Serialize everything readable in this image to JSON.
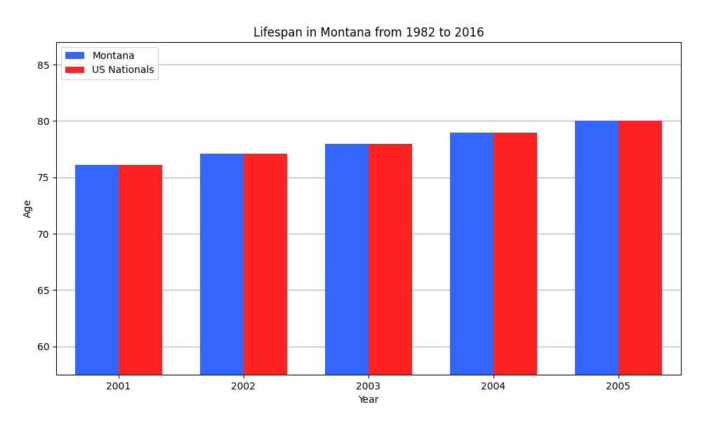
{
  "chart_data": {
    "type": "bar",
    "title": "Lifespan in Montana from 1982 to 2016",
    "x_label": "Year",
    "y_label": "Age",
    "categories": [
      "2001",
      "2002",
      "2003",
      "2004",
      "2005"
    ],
    "series": [
      {
        "name": "Montana",
        "color": "#3366ff",
        "values": [
          76.1,
          77.1,
          78.0,
          79.0,
          80.0
        ]
      },
      {
        "name": "US Nationals",
        "color": "#ff2222",
        "values": [
          76.1,
          77.1,
          78.0,
          79.0,
          80.0
        ]
      }
    ],
    "ylim": [
      57.5,
      87
    ],
    "yticks": [
      60,
      65,
      70,
      75,
      80,
      85
    ],
    "grid": true,
    "legend": "upper left"
  }
}
